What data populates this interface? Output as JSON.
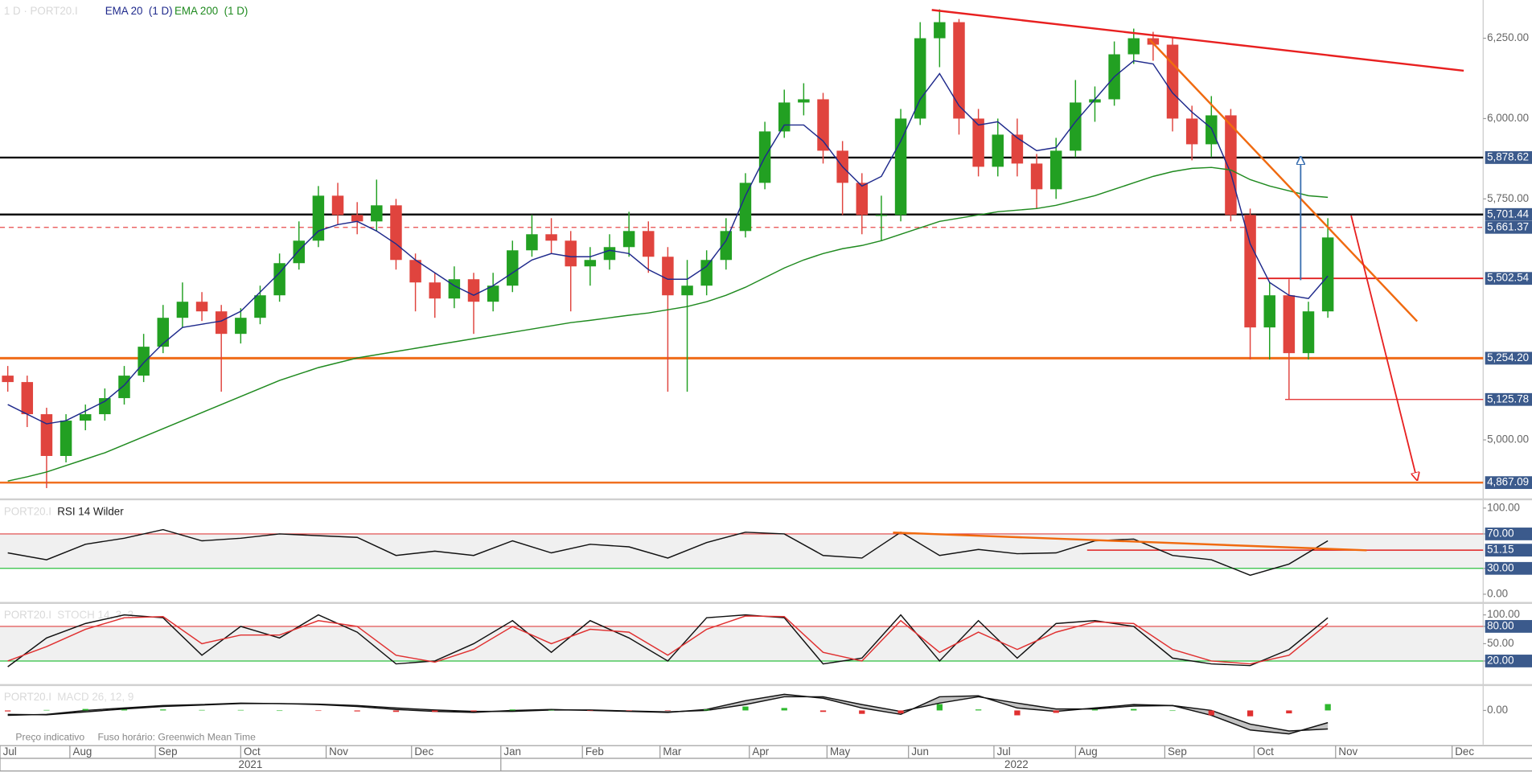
{
  "chart_data": [
    {
      "type": "candlestick",
      "title": "1 D · PORT20.I",
      "x": [
        2,
        7,
        12,
        17,
        22,
        27,
        32,
        37,
        42,
        47,
        52,
        57,
        62,
        67,
        72,
        77,
        82,
        87,
        92,
        97,
        102,
        107,
        112,
        117,
        122,
        127,
        132,
        137,
        142,
        147,
        152,
        157,
        162,
        167,
        172,
        177,
        182,
        187,
        192,
        197,
        202,
        207,
        212,
        217,
        222,
        227,
        232,
        237,
        242,
        247,
        252,
        257,
        262,
        267,
        272,
        277,
        282,
        287,
        292,
        297,
        302,
        307,
        312,
        317,
        322,
        327,
        332,
        337,
        342
      ],
      "open": [
        5200,
        5180,
        5080,
        4950,
        5060,
        5080,
        5130,
        5200,
        5290,
        5380,
        5430,
        5400,
        5330,
        5380,
        5450,
        5550,
        5620,
        5760,
        5700,
        5680,
        5730,
        5560,
        5490,
        5440,
        5500,
        5430,
        5480,
        5590,
        5640,
        5620,
        5540,
        5560,
        5600,
        5650,
        5570,
        5450,
        5480,
        5560,
        5650,
        5800,
        5960,
        6050,
        6060,
        5900,
        5800,
        5700,
        5700,
        6000,
        6250,
        6300,
        6000,
        5850,
        5950,
        5860,
        5780,
        5900,
        6050,
        6060,
        6200,
        6250,
        6230,
        6000,
        5920,
        6010,
        5700,
        5350,
        5450,
        5270,
        5400
      ],
      "high": [
        5230,
        5200,
        5100,
        5080,
        5110,
        5160,
        5230,
        5330,
        5420,
        5490,
        5460,
        5420,
        5410,
        5480,
        5580,
        5680,
        5790,
        5800,
        5740,
        5810,
        5750,
        5580,
        5520,
        5540,
        5520,
        5520,
        5620,
        5700,
        5690,
        5650,
        5600,
        5640,
        5710,
        5680,
        5600,
        5560,
        5590,
        5690,
        5830,
        5990,
        6090,
        6110,
        6080,
        5930,
        5830,
        5760,
        6030,
        6300,
        6340,
        6310,
        6030,
        6000,
        6000,
        5890,
        5940,
        6120,
        6100,
        6240,
        6280,
        6270,
        6250,
        6040,
        6070,
        6030,
        5720,
        5490,
        5500,
        5430,
        5690
      ],
      "low": [
        5150,
        5040,
        4850,
        4930,
        5030,
        5060,
        5110,
        5180,
        5270,
        5350,
        5370,
        5150,
        5300,
        5360,
        5430,
        5530,
        5600,
        5670,
        5640,
        5650,
        5530,
        5400,
        5380,
        5410,
        5330,
        5400,
        5460,
        5570,
        5580,
        5400,
        5480,
        5530,
        5570,
        5520,
        5150,
        5150,
        5450,
        5530,
        5630,
        5780,
        5940,
        6010,
        5860,
        5700,
        5640,
        5620,
        5680,
        5980,
        6160,
        5950,
        5820,
        5820,
        5820,
        5720,
        5750,
        5880,
        5990,
        6040,
        6170,
        6180,
        5960,
        5870,
        5880,
        5680,
        5250,
        5250,
        5126,
        5250,
        5380
      ],
      "close": [
        5180,
        5080,
        4950,
        5060,
        5080,
        5130,
        5200,
        5290,
        5380,
        5430,
        5400,
        5330,
        5380,
        5450,
        5550,
        5620,
        5760,
        5700,
        5680,
        5730,
        5560,
        5490,
        5440,
        5500,
        5430,
        5480,
        5590,
        5640,
        5620,
        5540,
        5560,
        5600,
        5650,
        5570,
        5450,
        5480,
        5560,
        5650,
        5800,
        5960,
        6050,
        6060,
        5900,
        5800,
        5700,
        5700,
        6000,
        6250,
        6300,
        6000,
        5850,
        5950,
        5860,
        5780,
        5900,
        6050,
        6060,
        6200,
        6250,
        6230,
        6000,
        5920,
        6010,
        5700,
        5350,
        5450,
        5270,
        5400,
        5630
      ],
      "up_color": "#22a022",
      "down_color": "#e0443e",
      "series": [
        {
          "name": "EMA 20  (1 D)",
          "color": "#1f2a8c",
          "values": [
            5110,
            5080,
            5050,
            5060,
            5090,
            5120,
            5170,
            5240,
            5300,
            5350,
            5360,
            5370,
            5400,
            5460,
            5520,
            5590,
            5650,
            5670,
            5680,
            5650,
            5610,
            5560,
            5520,
            5480,
            5450,
            5480,
            5520,
            5560,
            5580,
            5570,
            5570,
            5590,
            5580,
            5530,
            5500,
            5500,
            5540,
            5620,
            5760,
            5880,
            5980,
            5980,
            5930,
            5850,
            5790,
            5820,
            5930,
            6060,
            6140,
            6040,
            5980,
            5990,
            5940,
            5900,
            5910,
            5990,
            6060,
            6130,
            6180,
            6170,
            6080,
            6020,
            5970,
            5830,
            5610,
            5490,
            5450,
            5440,
            5510
          ]
        },
        {
          "name": "EMA 200  (1 D)",
          "color": "#1f8a1f",
          "values": [
            4872,
            4885,
            4900,
            4920,
            4940,
            4960,
            4985,
            5010,
            5035,
            5060,
            5085,
            5110,
            5135,
            5160,
            5185,
            5205,
            5225,
            5240,
            5255,
            5265,
            5275,
            5285,
            5295,
            5305,
            5315,
            5325,
            5335,
            5345,
            5355,
            5365,
            5372,
            5380,
            5388,
            5395,
            5405,
            5415,
            5430,
            5450,
            5475,
            5505,
            5535,
            5560,
            5580,
            5595,
            5605,
            5620,
            5640,
            5660,
            5680,
            5690,
            5700,
            5710,
            5715,
            5720,
            5730,
            5745,
            5760,
            5780,
            5800,
            5820,
            5835,
            5845,
            5848,
            5840,
            5810,
            5790,
            5775,
            5760,
            5755
          ]
        }
      ],
      "xlim": [
        0,
        382
      ],
      "ylim": [
        4818,
        6369
      ],
      "yticks": [
        {
          "value": 6250,
          "label": "6,250.00"
        },
        {
          "value": 6000,
          "label": "6,000.00"
        },
        {
          "value": 5750,
          "label": "5,750.00"
        },
        {
          "value": 5000,
          "label": "5,000.00"
        }
      ],
      "levels": [
        {
          "value": 5878.62,
          "label": "5,878.62",
          "color": "#111111",
          "width": 2
        },
        {
          "value": 5701.44,
          "label": "5,701.44",
          "color": "#111111",
          "width": 2
        },
        {
          "value": 5661.37,
          "label": "5,661.37",
          "color": "#e84a4a",
          "dashed": true,
          "width": 1
        },
        {
          "value": 5502.54,
          "label": "5,502.54",
          "color": "#e02020",
          "from": 324,
          "width": 1.5
        },
        {
          "value": 5254.2,
          "label": "5,254.20",
          "color": "#f07020",
          "width": 2.5
        },
        {
          "value": 5125.78,
          "label": "5,125.78",
          "color": "#e02020",
          "from": 331,
          "width": 1
        },
        {
          "value": 4867.09,
          "label": "4,867.09",
          "color": "#f07020",
          "width": 2
        }
      ],
      "trend_lines": [
        {
          "color": "#e82020",
          "x": [
            240,
            377
          ],
          "y": [
            6338,
            6149
          ]
        },
        {
          "color": "#f06a10",
          "x": [
            296,
            365
          ],
          "y": [
            6247,
            5369
          ]
        },
        {
          "color": "#e82020",
          "x": [
            348,
            365
          ],
          "y": [
            5698,
            4875
          ],
          "arrow": true
        },
        {
          "color": "#3a6fb0",
          "x": [
            335,
            335
          ],
          "y": [
            5497,
            5881
          ],
          "arrow": true
        }
      ],
      "xticks": [
        {
          "value": 0,
          "label": "Jul"
        },
        {
          "value": 18,
          "label": "Aug"
        },
        {
          "value": 40,
          "label": "Sep"
        },
        {
          "value": 62,
          "label": "Oct"
        },
        {
          "value": 84,
          "label": "Nov"
        },
        {
          "value": 106,
          "label": "Dec"
        },
        {
          "value": 129,
          "label": "Jan"
        },
        {
          "value": 150,
          "label": "Feb"
        },
        {
          "value": 170,
          "label": "Mar"
        },
        {
          "value": 193,
          "label": "Apr"
        },
        {
          "value": 213,
          "label": "May"
        },
        {
          "value": 234,
          "label": "Jun"
        },
        {
          "value": 256,
          "label": "Jul"
        },
        {
          "value": 277,
          "label": "Aug"
        },
        {
          "value": 300,
          "label": "Sep"
        },
        {
          "value": 323,
          "label": "Oct"
        },
        {
          "value": 344,
          "label": "Nov"
        },
        {
          "value": 374,
          "label": "Dec"
        }
      ],
      "year_ticks": [
        {
          "value": 0,
          "label": "2021"
        },
        {
          "value": 129,
          "label": "2022"
        }
      ],
      "footnote": "Preço indicativo",
      "timezone": "Fuso horário: Greenwich Mean Time"
    },
    {
      "type": "line",
      "title": "PORT20.I",
      "subtitle": "RSI 14 Wilder",
      "x": [
        2,
        12,
        22,
        32,
        42,
        52,
        62,
        72,
        82,
        92,
        102,
        112,
        122,
        132,
        142,
        152,
        162,
        172,
        182,
        192,
        202,
        212,
        222,
        232,
        242,
        252,
        262,
        272,
        282,
        292,
        302,
        312,
        322,
        332,
        342
      ],
      "series": [
        {
          "color": "#111111",
          "values": [
            48,
            40,
            58,
            65,
            75,
            62,
            65,
            70,
            68,
            66,
            45,
            50,
            45,
            62,
            48,
            58,
            55,
            42,
            60,
            72,
            70,
            45,
            42,
            72,
            45,
            52,
            47,
            48,
            62,
            64,
            45,
            40,
            22,
            35,
            62
          ]
        }
      ],
      "xlim": [
        0,
        382
      ],
      "ylim": [
        -9,
        109
      ],
      "yticks": [
        {
          "value": 0,
          "label": "0.00"
        },
        {
          "value": 30,
          "label": "30.00",
          "boxed": true
        },
        {
          "value": 70,
          "label": "70.00",
          "boxed": true
        },
        {
          "value": 100,
          "label": "100.00"
        }
      ],
      "band": [
        30,
        70
      ],
      "levels": [
        {
          "value": 70,
          "color": "#e04040",
          "width": 1
        },
        {
          "value": 30,
          "color": "#2ec040",
          "width": 1
        },
        {
          "value": 51.15,
          "label": "51.15",
          "color": "#e02020",
          "from": 280,
          "width": 1.2
        }
      ],
      "trend_lines": [
        {
          "color": "#f06a10",
          "x": [
            230,
            352
          ],
          "y": [
            71.6,
            51
          ]
        }
      ]
    },
    {
      "type": "line",
      "title": "PORT20.I",
      "subtitle": "STOCH 14, 3, 3",
      "x": [
        2,
        12,
        22,
        32,
        42,
        52,
        62,
        72,
        82,
        92,
        102,
        112,
        122,
        132,
        142,
        152,
        162,
        172,
        182,
        192,
        202,
        212,
        222,
        232,
        242,
        252,
        262,
        272,
        282,
        292,
        302,
        312,
        322,
        332,
        342
      ],
      "series": [
        {
          "color": "#111111",
          "values": [
            10,
            60,
            85,
            100,
            95,
            30,
            80,
            60,
            100,
            70,
            15,
            20,
            50,
            90,
            35,
            90,
            60,
            20,
            95,
            100,
            95,
            15,
            25,
            100,
            20,
            90,
            25,
            85,
            90,
            80,
            25,
            15,
            12,
            40,
            95
          ]
        },
        {
          "color": "#e03030",
          "values": [
            20,
            45,
            75,
            95,
            97,
            50,
            65,
            65,
            90,
            80,
            30,
            18,
            40,
            80,
            50,
            75,
            70,
            30,
            75,
            98,
            97,
            35,
            20,
            90,
            35,
            70,
            40,
            70,
            88,
            85,
            40,
            20,
            15,
            30,
            85
          ]
        }
      ],
      "xlim": [
        0,
        382
      ],
      "ylim": [
        -20,
        119
      ],
      "yticks": [
        {
          "value": 20,
          "label": "20.00",
          "boxed": true
        },
        {
          "value": 50,
          "label": "50.00"
        },
        {
          "value": 80,
          "label": "80.00",
          "boxed": true
        },
        {
          "value": 100,
          "label": "100.00"
        }
      ],
      "band": [
        20,
        80
      ],
      "levels": [
        {
          "value": 80,
          "color": "#e04040",
          "width": 1
        },
        {
          "value": 20,
          "color": "#2ec040",
          "width": 1
        }
      ]
    },
    {
      "type": "line",
      "title": "PORT20.I",
      "subtitle": "MACD 26, 12, 9",
      "x": [
        2,
        12,
        22,
        32,
        42,
        52,
        62,
        72,
        82,
        92,
        102,
        112,
        122,
        132,
        142,
        152,
        162,
        172,
        182,
        192,
        202,
        212,
        222,
        232,
        242,
        252,
        262,
        272,
        282,
        292,
        302,
        312,
        322,
        332,
        342
      ],
      "series": [
        {
          "color": "#111111",
          "values": [
            -10,
            -8,
            0,
            5,
            10,
            12,
            15,
            14,
            12,
            8,
            2,
            -2,
            -4,
            0,
            2,
            0,
            -2,
            -4,
            2,
            20,
            33,
            25,
            5,
            -8,
            28,
            30,
            5,
            -2,
            5,
            12,
            10,
            -10,
            -40,
            -48,
            -25
          ]
        },
        {
          "color": "#111111",
          "values": [
            -8,
            -9,
            -3,
            3,
            8,
            11,
            14,
            14,
            13,
            10,
            5,
            1,
            -2,
            -2,
            1,
            1,
            -1,
            -3,
            0,
            12,
            28,
            28,
            12,
            -2,
            15,
            28,
            15,
            3,
            3,
            9,
            10,
            0,
            -28,
            -42,
            -38
          ]
        },
        {
          "type": "bar",
          "up_color": "#2eb82e",
          "down_color": "#e03030",
          "values": [
            -2,
            1,
            3,
            2,
            2,
            1,
            1,
            0,
            -1,
            -2,
            -3,
            -3,
            -2,
            2,
            1,
            -1,
            -1,
            -1,
            2,
            8,
            5,
            -3,
            -7,
            -6,
            13,
            2,
            -10,
            -5,
            2,
            3,
            0,
            -10,
            -12,
            -6,
            13
          ]
        }
      ],
      "fill_between": "#9a9a9a",
      "xlim": [
        0,
        382
      ],
      "ylim": [
        -70,
        50
      ],
      "yticks": [
        {
          "value": 0,
          "label": "0.00"
        }
      ]
    }
  ]
}
